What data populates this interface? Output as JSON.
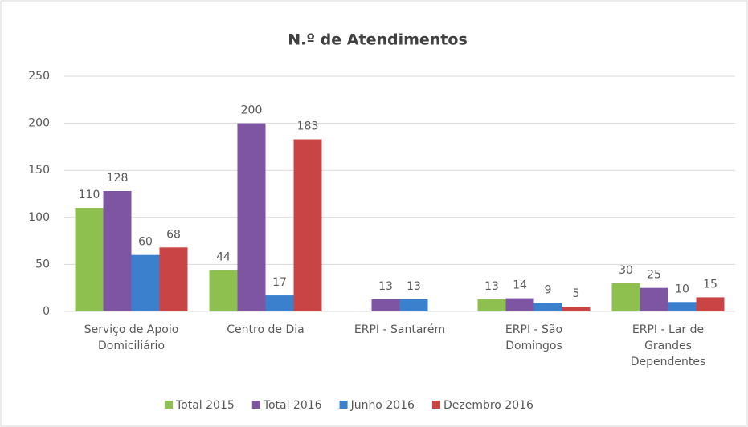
{
  "chart_data": {
    "type": "bar",
    "title": "N.º de Atendimentos",
    "categories": [
      "Serviço de Apoio Domiciliário",
      "Centro de Dia",
      "ERPI - Santarém",
      "ERPI - São Domingos",
      "ERPI - Lar de Grandes Dependentes"
    ],
    "series": [
      {
        "name": "Total 2015",
        "color": "#8dc04e",
        "values": [
          110,
          44,
          null,
          13,
          30
        ]
      },
      {
        "name": "Total 2016",
        "color": "#7e55a3",
        "values": [
          128,
          200,
          13,
          14,
          25
        ]
      },
      {
        "name": "Junho 2016",
        "color": "#3a80cc",
        "values": [
          60,
          17,
          13,
          9,
          10
        ]
      },
      {
        "name": "Dezembro 2016",
        "color": "#c94444",
        "values": [
          68,
          183,
          null,
          5,
          15
        ]
      }
    ],
    "ylim": [
      0,
      250
    ],
    "yticks": [
      0,
      50,
      100,
      150,
      200,
      250
    ],
    "grid": true,
    "legend": "bottom"
  }
}
